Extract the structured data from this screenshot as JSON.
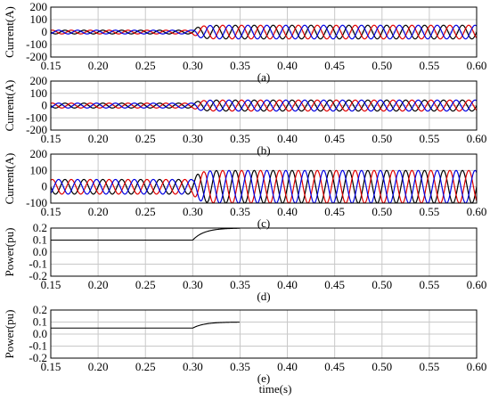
{
  "figure": {
    "xlabel": "time(s)"
  },
  "colors": {
    "phase_a": "#000000",
    "phase_b": "#e00000",
    "phase_c": "#0000e0",
    "grid": "#c8c8c8",
    "axis": "#000000"
  },
  "chart_data": [
    {
      "type": "line",
      "panel_label": "(a)",
      "ylabel": "Current(A)",
      "xlim": [
        0.15,
        0.6
      ],
      "ylim": [
        -200,
        200
      ],
      "x_ticks": [
        "0.15",
        "0.20",
        "0.25",
        "0.30",
        "0.35",
        "0.40",
        "0.45",
        "0.50",
        "0.55",
        "0.60"
      ],
      "y_ticks": [
        "200",
        "100",
        "0",
        "-100",
        "-200"
      ],
      "grid": true,
      "frequency_hz": 50,
      "series": [
        {
          "color": "#000000",
          "phase_deg": 0,
          "amplitude_before": 15,
          "amplitude_after": 55,
          "step_time": 0.3
        },
        {
          "color": "#e00000",
          "phase_deg": -120,
          "amplitude_before": 15,
          "amplitude_after": 55,
          "step_time": 0.3
        },
        {
          "color": "#0000e0",
          "phase_deg": 120,
          "amplitude_before": 15,
          "amplitude_after": 55,
          "step_time": 0.3
        }
      ]
    },
    {
      "type": "line",
      "panel_label": "(b)",
      "ylabel": "Current(A)",
      "xlim": [
        0.15,
        0.6
      ],
      "ylim": [
        -200,
        200
      ],
      "x_ticks": [
        "0.15",
        "0.20",
        "0.25",
        "0.30",
        "0.35",
        "0.40",
        "0.45",
        "0.50",
        "0.55",
        "0.60"
      ],
      "y_ticks": [
        "200",
        "100",
        "0",
        "-100",
        "-200"
      ],
      "grid": true,
      "frequency_hz": 50,
      "series": [
        {
          "color": "#000000",
          "phase_deg": 0,
          "amplitude_before": 20,
          "amplitude_after": 45,
          "step_time": 0.3
        },
        {
          "color": "#e00000",
          "phase_deg": -120,
          "amplitude_before": 20,
          "amplitude_after": 45,
          "step_time": 0.3
        },
        {
          "color": "#0000e0",
          "phase_deg": 120,
          "amplitude_before": 20,
          "amplitude_after": 45,
          "step_time": 0.3
        }
      ]
    },
    {
      "type": "line",
      "panel_label": "(c)",
      "ylabel": "Current(A)",
      "xlim": [
        0.15,
        0.6
      ],
      "ylim": [
        -100,
        200
      ],
      "x_ticks": [
        "0.15",
        "0.20",
        "0.25",
        "0.30",
        "0.35",
        "0.40",
        "0.45",
        "0.50",
        "0.55",
        "0.60"
      ],
      "y_ticks": [
        "200",
        "100",
        "0",
        "-100"
      ],
      "grid": true,
      "frequency_hz": 50,
      "series": [
        {
          "color": "#000000",
          "phase_deg": 0,
          "amplitude_before": 45,
          "amplitude_after": 100,
          "step_time": 0.3
        },
        {
          "color": "#e00000",
          "phase_deg": -120,
          "amplitude_before": 45,
          "amplitude_after": 100,
          "step_time": 0.3
        },
        {
          "color": "#0000e0",
          "phase_deg": 120,
          "amplitude_before": 45,
          "amplitude_after": 100,
          "step_time": 0.3
        }
      ]
    },
    {
      "type": "line",
      "panel_label": "(d)",
      "ylabel": "Power(pu)",
      "xlim": [
        0.15,
        0.6
      ],
      "ylim": [
        -0.2,
        0.2
      ],
      "x_ticks": [
        "0.15",
        "0.20",
        "0.25",
        "0.30",
        "0.35",
        "0.40",
        "0.45",
        "0.50",
        "0.55",
        "0.60"
      ],
      "y_ticks": [
        "0.2",
        "0.1",
        "0.0",
        "-0.1",
        "-0.2"
      ],
      "grid": true,
      "series": [
        {
          "color": "#000000",
          "before": 0.1,
          "after": 0.2,
          "step_time": 0.3,
          "end_time": 0.35
        }
      ]
    },
    {
      "type": "line",
      "panel_label": "(e)",
      "ylabel": "Power(pu)",
      "xlim": [
        0.15,
        0.6
      ],
      "ylim": [
        -0.2,
        0.2
      ],
      "x_ticks": [
        "0.15",
        "0.20",
        "0.25",
        "0.30",
        "0.35",
        "0.40",
        "0.45",
        "0.50",
        "0.55",
        "0.60"
      ],
      "y_ticks": [
        "0.2",
        "0.1",
        "0.0",
        "-0.1",
        "-0.2"
      ],
      "grid": true,
      "series": [
        {
          "color": "#000000",
          "before": 0.05,
          "after": 0.1,
          "step_time": 0.3,
          "end_time": 0.35
        }
      ]
    }
  ]
}
